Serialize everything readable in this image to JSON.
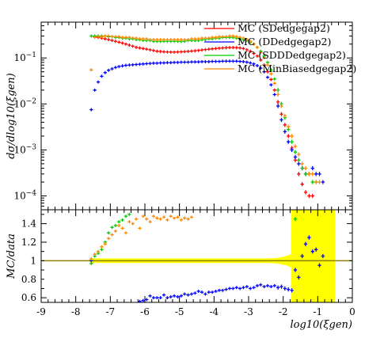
{
  "chart_data": [
    {
      "type": "scatter",
      "panel": "main",
      "ylabel": "dσ/dlog10(ξgen)",
      "yscale": "log",
      "ylim": [
        5e-05,
        0.6
      ],
      "xlim": [
        -9,
        0
      ],
      "yticks": [
        {
          "value": 0.0001,
          "base": "10",
          "exp": "−4"
        },
        {
          "value": 0.001,
          "base": "10",
          "exp": "−3"
        },
        {
          "value": 0.01,
          "base": "10",
          "exp": "−2"
        },
        {
          "value": 0.1,
          "base": "10",
          "exp": "−1"
        }
      ],
      "legend_position": "top-right",
      "series": [
        {
          "name": "MC (SDedgegap2)",
          "color": "#ff0000",
          "x": [
            -7.45,
            -7.35,
            -7.25,
            -7.15,
            -7.05,
            -6.95,
            -6.85,
            -6.75,
            -6.65,
            -6.55,
            -6.45,
            -6.35,
            -6.25,
            -6.15,
            -6.05,
            -5.95,
            -5.85,
            -5.75,
            -5.65,
            -5.55,
            -5.45,
            -5.35,
            -5.25,
            -5.15,
            -5.05,
            -4.95,
            -4.85,
            -4.75,
            -4.65,
            -4.55,
            -4.45,
            -4.35,
            -4.25,
            -4.15,
            -4.05,
            -3.95,
            -3.85,
            -3.75,
            -3.65,
            -3.55,
            -3.45,
            -3.35,
            -3.25,
            -3.15,
            -3.05,
            -2.95,
            -2.85,
            -2.75,
            -2.65,
            -2.55,
            -2.45,
            -2.35,
            -2.25,
            -2.15,
            -2.05,
            -1.95,
            -1.85,
            -1.75,
            -1.65,
            -1.55,
            -1.45,
            -1.35,
            -1.25,
            -1.15
          ],
          "y": [
            0.29,
            0.28,
            0.27,
            0.26,
            0.25,
            0.24,
            0.23,
            0.22,
            0.21,
            0.2,
            0.19,
            0.18,
            0.17,
            0.165,
            0.16,
            0.155,
            0.15,
            0.145,
            0.14,
            0.138,
            0.136,
            0.135,
            0.134,
            0.134,
            0.135,
            0.136,
            0.137,
            0.139,
            0.141,
            0.143,
            0.146,
            0.149,
            0.152,
            0.155,
            0.158,
            0.16,
            0.163,
            0.165,
            0.167,
            0.168,
            0.168,
            0.167,
            0.165,
            0.16,
            0.15,
            0.14,
            0.125,
            0.11,
            0.09,
            0.07,
            0.05,
            0.034,
            0.02,
            0.011,
            0.006,
            0.0035,
            0.002,
            0.0011,
            0.0006,
            0.0003,
            0.00018,
            0.00012,
            0.0001,
            0.0001
          ]
        },
        {
          "name": "MC (DDedgegap2)",
          "color": "#0000ff",
          "x": [
            -7.55,
            -7.45,
            -7.35,
            -7.25,
            -7.15,
            -7.05,
            -6.95,
            -6.85,
            -6.75,
            -6.65,
            -6.55,
            -6.45,
            -6.35,
            -6.25,
            -6.15,
            -6.05,
            -5.95,
            -5.85,
            -5.75,
            -5.65,
            -5.55,
            -5.45,
            -5.35,
            -5.25,
            -5.15,
            -5.05,
            -4.95,
            -4.85,
            -4.75,
            -4.65,
            -4.55,
            -4.45,
            -4.35,
            -4.25,
            -4.15,
            -4.05,
            -3.95,
            -3.85,
            -3.75,
            -3.65,
            -3.55,
            -3.45,
            -3.35,
            -3.25,
            -3.15,
            -3.05,
            -2.95,
            -2.85,
            -2.75,
            -2.65,
            -2.55,
            -2.45,
            -2.35,
            -2.25,
            -2.15,
            -2.05,
            -1.95,
            -1.85,
            -1.75,
            -1.65,
            -1.55,
            -1.45,
            -1.35,
            -1.25,
            -1.15,
            -1.05,
            -0.95,
            -0.85
          ],
          "y": [
            0.0075,
            0.02,
            0.03,
            0.04,
            0.048,
            0.054,
            0.058,
            0.062,
            0.065,
            0.067,
            0.069,
            0.07,
            0.071,
            0.072,
            0.073,
            0.074,
            0.075,
            0.076,
            0.077,
            0.077,
            0.078,
            0.078,
            0.079,
            0.079,
            0.08,
            0.08,
            0.081,
            0.081,
            0.081,
            0.082,
            0.082,
            0.082,
            0.083,
            0.083,
            0.083,
            0.084,
            0.084,
            0.084,
            0.085,
            0.085,
            0.085,
            0.085,
            0.085,
            0.084,
            0.083,
            0.081,
            0.078,
            0.074,
            0.068,
            0.06,
            0.05,
            0.038,
            0.026,
            0.016,
            0.009,
            0.0045,
            0.0025,
            0.0015,
            0.001,
            0.0007,
            0.0005,
            0.0004,
            0.0003,
            0.0003,
            0.0004,
            0.0003,
            0.0003,
            0.0002
          ]
        },
        {
          "name": "MC (SDDDedgegap2)",
          "color": "#00cc00",
          "x": [
            -7.55,
            -7.45,
            -7.35,
            -7.25,
            -7.15,
            -7.05,
            -6.95,
            -6.85,
            -6.75,
            -6.65,
            -6.55,
            -6.45,
            -6.35,
            -6.25,
            -6.15,
            -6.05,
            -5.95,
            -5.85,
            -5.75,
            -5.65,
            -5.55,
            -5.45,
            -5.35,
            -5.25,
            -5.15,
            -5.05,
            -4.95,
            -4.85,
            -4.75,
            -4.65,
            -4.55,
            -4.45,
            -4.35,
            -4.25,
            -4.15,
            -4.05,
            -3.95,
            -3.85,
            -3.75,
            -3.65,
            -3.55,
            -3.45,
            -3.35,
            -3.25,
            -3.15,
            -3.05,
            -2.95,
            -2.85,
            -2.75,
            -2.65,
            -2.55,
            -2.45,
            -2.35,
            -2.25,
            -2.15,
            -2.05,
            -1.95,
            -1.85,
            -1.75,
            -1.65,
            -1.55,
            -1.45,
            -1.35,
            -1.25,
            -1.15,
            -1.05
          ],
          "y": [
            0.3,
            0.3,
            0.3,
            0.3,
            0.3,
            0.29,
            0.29,
            0.28,
            0.28,
            0.27,
            0.27,
            0.26,
            0.26,
            0.25,
            0.25,
            0.24,
            0.24,
            0.24,
            0.23,
            0.23,
            0.23,
            0.23,
            0.23,
            0.23,
            0.23,
            0.23,
            0.23,
            0.23,
            0.24,
            0.24,
            0.24,
            0.24,
            0.25,
            0.25,
            0.26,
            0.26,
            0.27,
            0.27,
            0.28,
            0.28,
            0.28,
            0.28,
            0.27,
            0.26,
            0.25,
            0.24,
            0.22,
            0.2,
            0.17,
            0.14,
            0.11,
            0.08,
            0.055,
            0.035,
            0.02,
            0.01,
            0.005,
            0.0028,
            0.0015,
            0.0009,
            0.0006,
            0.0004,
            0.0003,
            0.0003,
            0.0002,
            0.0002
          ]
        },
        {
          "name": "MC (MinBiasedgegap2)",
          "color": "#ff8800",
          "x": [
            -7.55,
            -7.45,
            -7.35,
            -7.25,
            -7.15,
            -7.05,
            -6.95,
            -6.85,
            -6.75,
            -6.65,
            -6.55,
            -6.45,
            -6.35,
            -6.25,
            -6.15,
            -6.05,
            -5.95,
            -5.85,
            -5.75,
            -5.65,
            -5.55,
            -5.45,
            -5.35,
            -5.25,
            -5.15,
            -5.05,
            -4.95,
            -4.85,
            -4.75,
            -4.65,
            -4.55,
            -4.45,
            -4.35,
            -4.25,
            -4.15,
            -4.05,
            -3.95,
            -3.85,
            -3.75,
            -3.65,
            -3.55,
            -3.45,
            -3.35,
            -3.25,
            -3.15,
            -3.05,
            -2.95,
            -2.85,
            -2.75,
            -2.65,
            -2.55,
            -2.45,
            -2.35,
            -2.25,
            -2.15,
            -2.05,
            -1.95,
            -1.85,
            -1.75,
            -1.65,
            -1.55,
            -1.45,
            -1.35,
            -1.25,
            -1.15,
            -1.05,
            -0.95
          ],
          "y": [
            0.055,
            0.28,
            0.29,
            0.29,
            0.3,
            0.3,
            0.29,
            0.29,
            0.29,
            0.28,
            0.28,
            0.28,
            0.27,
            0.27,
            0.26,
            0.26,
            0.26,
            0.25,
            0.25,
            0.25,
            0.25,
            0.25,
            0.25,
            0.25,
            0.25,
            0.25,
            0.25,
            0.25,
            0.25,
            0.26,
            0.26,
            0.26,
            0.27,
            0.27,
            0.27,
            0.28,
            0.28,
            0.29,
            0.29,
            0.29,
            0.3,
            0.3,
            0.29,
            0.28,
            0.27,
            0.25,
            0.23,
            0.2,
            0.17,
            0.13,
            0.1,
            0.07,
            0.045,
            0.028,
            0.016,
            0.009,
            0.0055,
            0.0032,
            0.002,
            0.0012,
            0.0008,
            0.0005,
            0.0004,
            0.0003,
            0.0003,
            0.0002,
            0.0002
          ]
        }
      ]
    },
    {
      "type": "scatter",
      "panel": "ratio",
      "ylabel": "MC/data",
      "xlabel": "log10(ξgen)",
      "ylim": [
        0.55,
        1.55
      ],
      "xlim": [
        -9,
        0
      ],
      "yticks": [
        0.6,
        0.8,
        1,
        1.2,
        1.4
      ],
      "xticks": [
        -9,
        -8,
        -7,
        -6,
        -5,
        -4,
        -3,
        -2,
        -1,
        0
      ],
      "reference_line": 1,
      "band_color": "#ffff00",
      "line_color": "#8b8000",
      "series": [
        {
          "name": "MC (DDedgegap2)",
          "color": "#0000ff",
          "x": [
            -7.55,
            -6.15,
            -6.05,
            -5.95,
            -5.85,
            -5.75,
            -5.65,
            -5.55,
            -5.45,
            -5.35,
            -5.25,
            -5.15,
            -5.05,
            -4.95,
            -4.85,
            -4.75,
            -4.65,
            -4.55,
            -4.45,
            -4.35,
            -4.25,
            -4.15,
            -4.05,
            -3.95,
            -3.85,
            -3.75,
            -3.65,
            -3.55,
            -3.45,
            -3.35,
            -3.25,
            -3.15,
            -3.05,
            -2.95,
            -2.85,
            -2.75,
            -2.65,
            -2.55,
            -2.45,
            -2.35,
            -2.25,
            -2.15,
            -2.05,
            -1.95,
            -1.85,
            -1.75,
            -1.65,
            -1.55,
            -1.45,
            -1.35,
            -1.25,
            -1.15,
            -1.05,
            -0.95,
            -0.85
          ],
          "y": [
            1.0,
            0.56,
            0.57,
            0.58,
            0.62,
            0.6,
            0.6,
            0.6,
            0.63,
            0.6,
            0.61,
            0.62,
            0.61,
            0.62,
            0.64,
            0.63,
            0.64,
            0.65,
            0.67,
            0.66,
            0.64,
            0.66,
            0.66,
            0.67,
            0.68,
            0.68,
            0.69,
            0.7,
            0.7,
            0.71,
            0.7,
            0.71,
            0.72,
            0.7,
            0.71,
            0.73,
            0.74,
            0.72,
            0.73,
            0.72,
            0.73,
            0.71,
            0.72,
            0.7,
            0.69,
            0.68,
            0.9,
            0.82,
            1.05,
            1.18,
            1.25,
            1.1,
            1.12,
            0.95,
            1.05
          ]
        },
        {
          "name": "MC (SDDDedgegap2)",
          "color": "#00cc00",
          "x": [
            -7.55,
            -7.45,
            -7.35,
            -7.25,
            -7.15,
            -7.05,
            -6.95,
            -6.85,
            -6.75,
            -6.65,
            -6.55,
            -6.45,
            -1.65
          ],
          "y": [
            0.97,
            1.05,
            1.08,
            1.12,
            1.2,
            1.3,
            1.36,
            1.38,
            1.42,
            1.44,
            1.48,
            1.5,
            1.45
          ]
        },
        {
          "name": "MC (MinBiasedgegap2)",
          "color": "#ff8800",
          "x": [
            -7.55,
            -7.45,
            -7.35,
            -7.25,
            -7.15,
            -7.05,
            -6.95,
            -6.85,
            -6.75,
            -6.65,
            -6.55,
            -6.45,
            -6.35,
            -6.25,
            -6.15,
            -6.05,
            -5.95,
            -5.85,
            -5.75,
            -5.65,
            -5.55,
            -5.45,
            -5.35,
            -5.25,
            -5.15,
            -5.05,
            -4.95,
            -4.85,
            -4.75,
            -4.65
          ],
          "y": [
            1.02,
            1.07,
            1.1,
            1.15,
            1.18,
            1.24,
            1.28,
            1.32,
            1.38,
            1.35,
            1.3,
            1.42,
            1.4,
            1.45,
            1.35,
            1.48,
            1.45,
            1.42,
            1.48,
            1.46,
            1.45,
            1.47,
            1.44,
            1.48,
            1.46,
            1.47,
            1.44,
            1.46,
            1.45,
            1.47
          ]
        }
      ]
    }
  ]
}
